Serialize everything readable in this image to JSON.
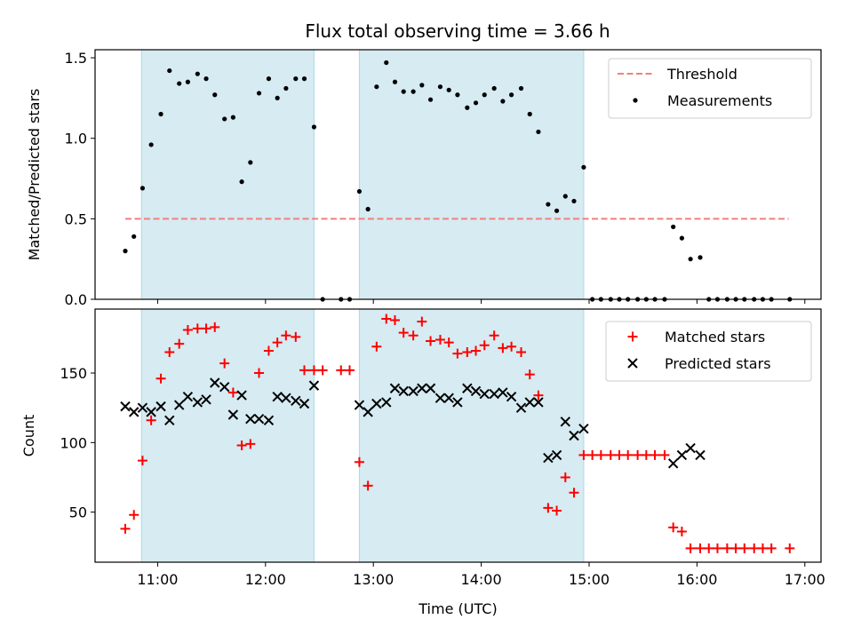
{
  "title": "Flux total observing time = 3.66 h",
  "colors": {
    "threshold": "#f08080",
    "measurements": "#000000",
    "matched": "#ff0000",
    "predicted": "#000000",
    "shade": "#add8e6"
  },
  "chart_data": [
    {
      "type": "scatter",
      "ylabel": "Matched/Predicted stars",
      "ylim": [
        0,
        1.55
      ],
      "yticks": [
        "0.0",
        "0.5",
        "1.0",
        "1.5"
      ],
      "xlim": [
        10.42,
        17.15
      ],
      "shaded_intervals": [
        [
          10.85,
          12.45
        ],
        [
          12.87,
          14.95
        ]
      ],
      "legend": {
        "placement": "top-right",
        "entries": [
          "Threshold",
          "Measurements"
        ]
      },
      "threshold": {
        "name": "Threshold",
        "value": 0.5,
        "x_range": [
          10.7,
          16.85
        ]
      },
      "series": [
        {
          "name": "Measurements",
          "marker": "dot",
          "x": [
            10.7,
            10.78,
            10.86,
            10.94,
            11.03,
            11.11,
            11.2,
            11.28,
            11.37,
            11.45,
            11.53,
            11.62,
            11.7,
            11.78,
            11.86,
            11.94,
            12.03,
            12.11,
            12.19,
            12.28,
            12.36,
            12.45,
            12.53,
            12.7,
            12.78,
            12.87,
            12.95,
            13.03,
            13.12,
            13.2,
            13.28,
            13.37,
            13.45,
            13.53,
            13.62,
            13.7,
            13.78,
            13.87,
            13.95,
            14.03,
            14.12,
            14.2,
            14.28,
            14.37,
            14.45,
            14.53,
            14.62,
            14.7,
            14.78,
            14.86,
            14.95,
            15.03,
            15.11,
            15.2,
            15.28,
            15.36,
            15.45,
            15.53,
            15.61,
            15.7,
            15.78,
            15.86,
            15.94,
            16.03,
            16.11,
            16.19,
            16.28,
            16.36,
            16.44,
            16.53,
            16.61,
            16.69,
            16.86
          ],
          "y": [
            0.3,
            0.39,
            0.69,
            0.96,
            1.15,
            1.42,
            1.34,
            1.35,
            1.4,
            1.37,
            1.27,
            1.12,
            1.13,
            0.73,
            0.85,
            1.28,
            1.37,
            1.25,
            1.31,
            1.37,
            1.37,
            1.07,
            0.0,
            0.0,
            0.0,
            0.67,
            0.56,
            1.32,
            1.47,
            1.35,
            1.29,
            1.29,
            1.33,
            1.24,
            1.32,
            1.3,
            1.27,
            1.19,
            1.22,
            1.27,
            1.31,
            1.23,
            1.27,
            1.31,
            1.15,
            1.04,
            0.59,
            0.55,
            0.64,
            0.61,
            0.82,
            0.0,
            0.0,
            0.0,
            0.0,
            0.0,
            0.0,
            0.0,
            0.0,
            0.0,
            0.45,
            0.38,
            0.25,
            0.26,
            0.0,
            0.0,
            0.0,
            0.0,
            0.0,
            0.0,
            0.0,
            0.0,
            0.0
          ]
        }
      ]
    },
    {
      "type": "scatter",
      "ylabel": "Count",
      "xlabel": "Time (UTC)",
      "ylim": [
        14,
        196
      ],
      "yticks": [
        "50",
        "100",
        "150"
      ],
      "xlim": [
        10.42,
        17.15
      ],
      "xticks": [
        "11:00",
        "12:00",
        "13:00",
        "14:00",
        "15:00",
        "16:00",
        "17:00"
      ],
      "shaded_intervals": [
        [
          10.85,
          12.45
        ],
        [
          12.87,
          14.95
        ]
      ],
      "legend": {
        "placement": "top-right",
        "entries": [
          "Matched stars",
          "Predicted stars"
        ]
      },
      "series": [
        {
          "name": "Matched stars",
          "marker": "plus",
          "x": [
            10.7,
            10.78,
            10.86,
            10.94,
            11.03,
            11.11,
            11.2,
            11.28,
            11.37,
            11.45,
            11.53,
            11.62,
            11.7,
            11.78,
            11.86,
            11.94,
            12.03,
            12.11,
            12.19,
            12.28,
            12.36,
            12.45,
            12.53,
            12.7,
            12.78,
            12.87,
            12.95,
            13.03,
            13.12,
            13.2,
            13.28,
            13.37,
            13.45,
            13.53,
            13.62,
            13.7,
            13.78,
            13.87,
            13.95,
            14.03,
            14.12,
            14.2,
            14.28,
            14.37,
            14.45,
            14.53,
            14.62,
            14.7,
            14.78,
            14.86,
            14.95,
            15.03,
            15.11,
            15.2,
            15.28,
            15.36,
            15.45,
            15.53,
            15.61,
            15.7,
            15.78,
            15.86,
            15.94,
            16.03,
            16.11,
            16.19,
            16.28,
            16.36,
            16.44,
            16.53,
            16.61,
            16.69,
            16.86
          ],
          "y": [
            38,
            48,
            87,
            116,
            146,
            165,
            171,
            181,
            182,
            182,
            183,
            157,
            136,
            98,
            99,
            150,
            166,
            172,
            177,
            176,
            152,
            152,
            152,
            152,
            152,
            86,
            69,
            169,
            189,
            188,
            179,
            177,
            187,
            173,
            174,
            172,
            164,
            165,
            166,
            170,
            177,
            168,
            169,
            165,
            149,
            134,
            53,
            51,
            75,
            64,
            91,
            91,
            91,
            91,
            91,
            91,
            91,
            91,
            91,
            91,
            39,
            36,
            24,
            24,
            24,
            24,
            24,
            24,
            24,
            24,
            24,
            24,
            24
          ]
        },
        {
          "name": "Predicted stars",
          "marker": "x",
          "x": [
            10.7,
            10.78,
            10.86,
            10.94,
            11.03,
            11.11,
            11.2,
            11.28,
            11.37,
            11.45,
            11.53,
            11.62,
            11.7,
            11.78,
            11.86,
            11.94,
            12.03,
            12.11,
            12.19,
            12.28,
            12.36,
            12.45,
            12.87,
            12.95,
            13.03,
            13.12,
            13.2,
            13.28,
            13.37,
            13.45,
            13.53,
            13.62,
            13.7,
            13.78,
            13.87,
            13.95,
            14.03,
            14.12,
            14.2,
            14.28,
            14.37,
            14.45,
            14.53,
            14.62,
            14.7,
            14.78,
            14.86,
            14.95,
            15.78,
            15.86,
            15.94,
            16.03
          ],
          "y": [
            126,
            122,
            125,
            122,
            126,
            116,
            127,
            133,
            129,
            131,
            143,
            140,
            120,
            134,
            117,
            117,
            116,
            133,
            132,
            130,
            128,
            141,
            127,
            122,
            128,
            129,
            139,
            137,
            137,
            139,
            139,
            132,
            132,
            129,
            139,
            137,
            135,
            135,
            136,
            133,
            125,
            129,
            129,
            89,
            91,
            115,
            105,
            110,
            85,
            91,
            96,
            91
          ]
        }
      ]
    }
  ]
}
